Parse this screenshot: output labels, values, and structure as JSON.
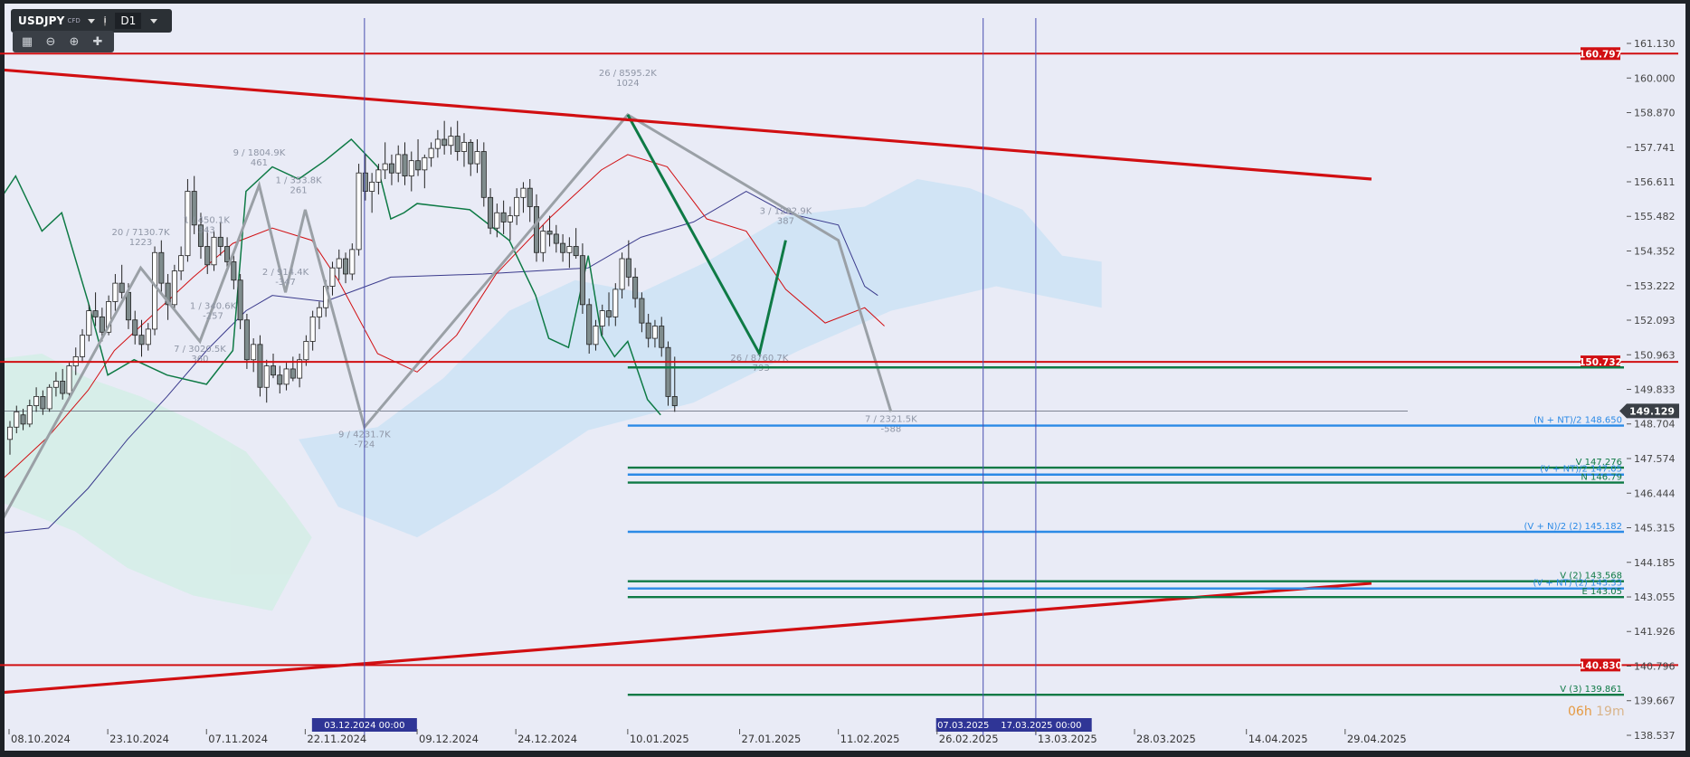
{
  "header": {
    "symbol": "USDJPY",
    "instrument": "CFD",
    "timeframe": "D1"
  },
  "countdown": {
    "hours": "06h",
    "minutes": "19m"
  },
  "colors": {
    "background": "#e9ebf6",
    "frame": "#1e2227",
    "red": "#d10f12",
    "green": "#0e7a45",
    "blue": "#2b8ae6",
    "navy": "#3a3a8c",
    "gray_zigzag": "#9aa0a6",
    "cloud_blue": "#cde3f5",
    "cloud_green": "#d4eee6"
  },
  "chart_data": {
    "type": "candlestick",
    "ylim": [
      138.537,
      161.9
    ],
    "y_ticks": [
      161.13,
      160.0,
      158.87,
      157.741,
      156.611,
      155.482,
      154.352,
      153.222,
      152.093,
      150.963,
      149.833,
      148.704,
      147.574,
      146.444,
      145.315,
      144.185,
      143.055,
      141.926,
      140.796,
      139.667,
      138.537
    ],
    "x_ticks": [
      {
        "label": "08.10.2024",
        "day": 0
      },
      {
        "label": "23.10.2024",
        "day": 15
      },
      {
        "label": "07.11.2024",
        "day": 30
      },
      {
        "label": "22.11.2024",
        "day": 45
      },
      {
        "label": "09.12.2024",
        "day": 62
      },
      {
        "label": "24.12.2024",
        "day": 77
      },
      {
        "label": "10.01.2025",
        "day": 94
      },
      {
        "label": "27.01.2025",
        "day": 111
      },
      {
        "label": "11.02.2025",
        "day": 126
      },
      {
        "label": "26.02.2025",
        "day": 141
      },
      {
        "label": "13.03.2025",
        "day": 156
      },
      {
        "label": "28.03.2025",
        "day": 171
      },
      {
        "label": "14.04.2025",
        "day": 188
      },
      {
        "label": "29.04.2025",
        "day": 203
      }
    ],
    "candles": [
      [
        148.2,
        148.8,
        147.7,
        148.6
      ],
      [
        148.6,
        149.3,
        148.4,
        149.1
      ],
      [
        149.0,
        149.2,
        148.5,
        148.7
      ],
      [
        148.7,
        149.5,
        148.6,
        149.3
      ],
      [
        149.3,
        149.9,
        149.1,
        149.6
      ],
      [
        149.6,
        149.8,
        149.0,
        149.2
      ],
      [
        149.2,
        150.0,
        149.1,
        149.9
      ],
      [
        149.9,
        150.4,
        149.6,
        150.1
      ],
      [
        150.1,
        150.5,
        149.5,
        149.7
      ],
      [
        149.7,
        150.7,
        149.6,
        150.6
      ],
      [
        150.6,
        151.2,
        150.3,
        150.9
      ],
      [
        150.9,
        151.8,
        150.7,
        151.6
      ],
      [
        151.6,
        152.6,
        151.4,
        152.4
      ],
      [
        152.4,
        153.0,
        151.9,
        152.2
      ],
      [
        152.2,
        152.5,
        151.4,
        151.7
      ],
      [
        151.7,
        152.9,
        151.6,
        152.7
      ],
      [
        152.7,
        153.6,
        152.4,
        153.3
      ],
      [
        153.3,
        153.9,
        152.8,
        153.0
      ],
      [
        153.0,
        153.3,
        151.8,
        152.1
      ],
      [
        152.1,
        152.4,
        151.3,
        151.6
      ],
      [
        151.6,
        152.1,
        150.9,
        151.3
      ],
      [
        151.3,
        152.0,
        151.1,
        151.8
      ],
      [
        151.8,
        154.5,
        151.6,
        154.3
      ],
      [
        154.3,
        154.7,
        153.0,
        153.3
      ],
      [
        153.3,
        153.6,
        152.1,
        152.6
      ],
      [
        152.6,
        153.9,
        152.4,
        153.7
      ],
      [
        153.7,
        154.5,
        153.4,
        154.2
      ],
      [
        154.2,
        156.7,
        154.0,
        156.3
      ],
      [
        156.3,
        156.8,
        154.9,
        155.2
      ],
      [
        155.2,
        155.6,
        154.1,
        154.5
      ],
      [
        154.5,
        155.1,
        153.6,
        153.9
      ],
      [
        153.9,
        155.0,
        153.7,
        154.8
      ],
      [
        154.8,
        155.3,
        154.2,
        154.5
      ],
      [
        154.5,
        154.8,
        153.7,
        154.0
      ],
      [
        154.0,
        154.2,
        153.1,
        153.4
      ],
      [
        153.4,
        153.6,
        151.8,
        152.1
      ],
      [
        152.1,
        152.3,
        150.5,
        150.8
      ],
      [
        150.8,
        151.5,
        150.4,
        151.3
      ],
      [
        151.3,
        151.6,
        149.6,
        149.9
      ],
      [
        149.9,
        150.8,
        149.4,
        150.6
      ],
      [
        150.6,
        151.0,
        150.2,
        150.3
      ],
      [
        150.3,
        150.6,
        149.7,
        150.0
      ],
      [
        150.0,
        150.7,
        149.8,
        150.5
      ],
      [
        150.5,
        150.9,
        150.1,
        150.2
      ],
      [
        150.2,
        151.0,
        149.9,
        150.8
      ],
      [
        150.8,
        151.6,
        150.6,
        151.4
      ],
      [
        151.4,
        152.4,
        151.1,
        152.2
      ],
      [
        152.2,
        152.7,
        151.8,
        152.5
      ],
      [
        152.5,
        153.4,
        152.2,
        153.2
      ],
      [
        153.2,
        154.0,
        152.9,
        153.8
      ],
      [
        153.8,
        154.4,
        153.4,
        154.1
      ],
      [
        154.1,
        154.3,
        153.3,
        153.6
      ],
      [
        153.6,
        154.6,
        153.4,
        154.4
      ],
      [
        154.4,
        157.2,
        154.2,
        156.9
      ],
      [
        156.9,
        157.5,
        156.0,
        156.3
      ],
      [
        156.3,
        156.9,
        155.6,
        156.6
      ],
      [
        156.6,
        157.2,
        156.2,
        157.0
      ],
      [
        157.0,
        157.9,
        156.7,
        157.2
      ],
      [
        157.2,
        157.5,
        156.5,
        156.9
      ],
      [
        156.9,
        157.8,
        156.6,
        157.5
      ],
      [
        157.5,
        157.9,
        156.5,
        156.8
      ],
      [
        156.8,
        157.6,
        156.3,
        157.3
      ],
      [
        157.3,
        158.0,
        156.8,
        157.0
      ],
      [
        157.0,
        157.5,
        156.4,
        157.4
      ],
      [
        157.4,
        157.9,
        157.1,
        157.7
      ],
      [
        157.7,
        158.3,
        157.4,
        158.0
      ],
      [
        158.0,
        158.6,
        157.5,
        157.8
      ],
      [
        157.8,
        158.4,
        157.5,
        158.1
      ],
      [
        158.1,
        158.6,
        157.3,
        157.6
      ],
      [
        157.6,
        158.2,
        157.1,
        157.9
      ],
      [
        157.9,
        158.0,
        156.8,
        157.2
      ],
      [
        157.2,
        158.0,
        156.9,
        157.6
      ],
      [
        157.6,
        157.9,
        155.8,
        156.1
      ],
      [
        156.1,
        156.4,
        154.9,
        155.1
      ],
      [
        155.1,
        155.9,
        154.8,
        155.6
      ],
      [
        155.6,
        156.0,
        154.9,
        155.3
      ],
      [
        155.3,
        155.8,
        154.7,
        155.5
      ],
      [
        155.5,
        156.4,
        155.2,
        156.1
      ],
      [
        156.1,
        156.6,
        155.6,
        156.4
      ],
      [
        156.4,
        156.7,
        155.3,
        155.8
      ],
      [
        155.8,
        156.2,
        154.0,
        154.3
      ],
      [
        154.3,
        155.2,
        154.0,
        155.0
      ],
      [
        155.0,
        155.5,
        154.5,
        154.9
      ],
      [
        154.9,
        155.2,
        154.3,
        154.6
      ],
      [
        154.6,
        154.9,
        154.0,
        154.3
      ],
      [
        154.3,
        154.8,
        153.8,
        154.5
      ],
      [
        154.5,
        155.1,
        154.1,
        154.2
      ],
      [
        154.2,
        154.6,
        152.3,
        152.6
      ],
      [
        152.6,
        152.8,
        151.0,
        151.3
      ],
      [
        151.3,
        152.1,
        151.1,
        151.9
      ],
      [
        151.9,
        152.6,
        151.6,
        152.4
      ],
      [
        152.4,
        153.0,
        151.9,
        152.2
      ],
      [
        152.2,
        153.3,
        151.9,
        153.1
      ],
      [
        153.1,
        154.3,
        152.8,
        154.1
      ],
      [
        154.1,
        154.7,
        153.2,
        153.5
      ],
      [
        153.5,
        153.8,
        152.5,
        152.8
      ],
      [
        152.8,
        153.0,
        151.7,
        152.0
      ],
      [
        152.0,
        152.3,
        151.2,
        151.5
      ],
      [
        151.5,
        152.1,
        151.2,
        151.9
      ],
      [
        151.9,
        152.2,
        150.9,
        151.2
      ],
      [
        151.2,
        151.4,
        149.3,
        149.6
      ],
      [
        149.6,
        150.9,
        149.1,
        149.3
      ]
    ],
    "horizontal_lines": [
      {
        "price": 160.797,
        "color": "red",
        "label": "160.797",
        "x_start_day": -3
      },
      {
        "price": 150.732,
        "color": "red",
        "label": "150.732",
        "x_start_day": -3
      },
      {
        "price": 140.83,
        "color": "red",
        "label": "140.830",
        "x_start_day": -3
      },
      {
        "price": 150.55,
        "color": "green",
        "label": "",
        "x_start_day": 94
      },
      {
        "price": 148.65,
        "color": "blue",
        "label": "(N + NT)/2 148.650",
        "x_start_day": 94
      },
      {
        "price": 147.276,
        "color": "green",
        "label": "V 147.276",
        "x_start_day": 94
      },
      {
        "price": 147.05,
        "color": "blue",
        "label": "(V + NT)/2 147.05",
        "x_start_day": 94
      },
      {
        "price": 146.79,
        "color": "green",
        "label": "N 146.79",
        "x_start_day": 94
      },
      {
        "price": 145.182,
        "color": "blue",
        "label": "(V + N)/2 (2) 145.182",
        "x_start_day": 94
      },
      {
        "price": 143.568,
        "color": "green",
        "label": "V (2) 143.568",
        "x_start_day": 94
      },
      {
        "price": 143.33,
        "color": "blue",
        "label": "(V + NT) (2) 143.33",
        "x_start_day": 94
      },
      {
        "price": 143.05,
        "color": "green",
        "label": "E 143.05",
        "x_start_day": 94
      },
      {
        "price": 139.861,
        "color": "green",
        "label": "V (3) 139.861",
        "x_start_day": 94
      }
    ],
    "current_price": {
      "price": 149.129,
      "label": "149.129"
    },
    "trend_lines": [
      {
        "from": [
          -3,
          160.3
        ],
        "to": [
          207,
          156.7
        ],
        "color": "red"
      },
      {
        "from": [
          -3,
          139.9
        ],
        "to": [
          207,
          143.5
        ],
        "color": "red"
      }
    ],
    "vertical_lines": [
      {
        "day": 54,
        "label": "03.12.2024 00:00"
      },
      {
        "day": 148,
        "label": "07.03.2025"
      },
      {
        "day": 156,
        "label": "17.03.2025 00:00"
      }
    ],
    "zigzag_gray": [
      [
        -3,
        144.8
      ],
      [
        20,
        153.8
      ],
      [
        29,
        151.4
      ],
      [
        38,
        156.5
      ],
      [
        42,
        153.0
      ],
      [
        45,
        155.7
      ],
      [
        54,
        148.6
      ],
      [
        94,
        158.8
      ],
      [
        126,
        154.7
      ],
      [
        134,
        149.1
      ]
    ],
    "zigzag_green": [
      [
        94,
        158.8
      ],
      [
        114,
        151.0
      ],
      [
        118,
        154.7
      ]
    ],
    "zigzag_labels": [
      {
        "day": 20,
        "price": 154.6,
        "line1": "20 / 7130.7K",
        "line2": "1223"
      },
      {
        "day": 29,
        "price": 150.8,
        "line1": "7 / 3020.5K",
        "line2": "360"
      },
      {
        "day": 30,
        "price": 155.0,
        "line1": "1 / 450.1K",
        "line2": "343"
      },
      {
        "day": 31,
        "price": 152.2,
        "line1": "1 / 340.6K",
        "line2": "-257"
      },
      {
        "day": 38,
        "price": 157.2,
        "line1": "9 / 1804.9K",
        "line2": "461"
      },
      {
        "day": 42,
        "price": 153.3,
        "line1": "2 / 914.4K",
        "line2": "-347"
      },
      {
        "day": 44,
        "price": 156.3,
        "line1": "1 / 353.8K",
        "line2": "261"
      },
      {
        "day": 54,
        "price": 148.0,
        "line1": "9 / 4231.7K",
        "line2": "-724"
      },
      {
        "day": 94,
        "price": 159.8,
        "line1": "26 / 8595.2K",
        "line2": "1024"
      },
      {
        "day": 114,
        "price": 150.5,
        "line1": "26 / 8760.7K",
        "line2": "-793"
      },
      {
        "day": 118,
        "price": 155.3,
        "line1": "3 / 1202.9K",
        "line2": "387"
      },
      {
        "day": 134,
        "price": 148.5,
        "line1": "7 / 2321.5K",
        "line2": "-588"
      }
    ]
  }
}
